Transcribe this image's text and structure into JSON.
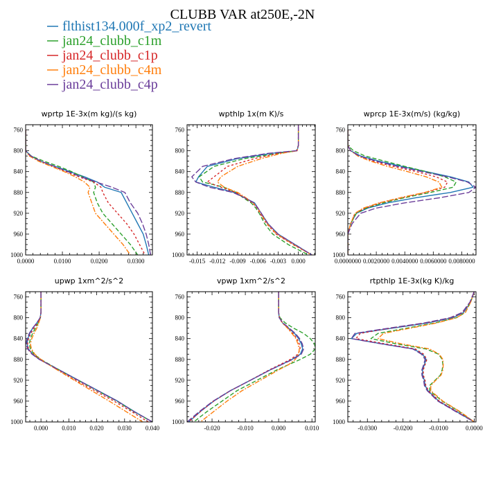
{
  "title": "CLUBB VAR at250E,-2N",
  "legend": [
    {
      "label": "flthist134.000f_xp2_revert",
      "color": "#1f77b4",
      "dash": ""
    },
    {
      "label": "jan24_clubb_c1m",
      "color": "#2ca02c",
      "dash": "6,3"
    },
    {
      "label": "jan24_clubb_c1p",
      "color": "#d62728",
      "dash": "3,3"
    },
    {
      "label": "jan24_clubb_c4m",
      "color": "#ff7f0e",
      "dash": "7,2,2,2"
    },
    {
      "label": "jan24_clubb_c4p",
      "color": "#6a3d9a",
      "dash": "9,3"
    }
  ],
  "chart_data": [
    {
      "type": "line",
      "title": "wprtp  1E-3x(m kg)/(s kg)",
      "xlim": [
        0,
        0.0345
      ],
      "ylim": [
        1000,
        750
      ],
      "xticks": [
        0,
        0.01,
        0.02,
        0.03
      ],
      "xtick_labels": [
        "0.0000",
        "0.0100",
        "0.0200",
        "0.0300"
      ],
      "yticks": [
        760,
        800,
        840,
        880,
        920,
        960,
        1000
      ],
      "y": [
        760,
        780,
        800,
        810,
        820,
        830,
        840,
        850,
        860,
        870,
        880,
        900,
        920,
        940,
        960,
        980,
        1000
      ],
      "series": [
        {
          "name": "flthist134.000f_xp2_revert",
          "values": [
            0,
            0,
            0,
            0.0015,
            0.004,
            0.008,
            0.012,
            0.016,
            0.0195,
            0.0215,
            0.026,
            0.0275,
            0.029,
            0.0305,
            0.032,
            0.0328,
            0.0335
          ]
        },
        {
          "name": "jan24_clubb_c1m",
          "values": [
            0,
            0,
            0,
            0.0015,
            0.005,
            0.009,
            0.0125,
            0.0155,
            0.0185,
            0.019,
            0.0185,
            0.0195,
            0.021,
            0.0235,
            0.026,
            0.0285,
            0.0305
          ]
        },
        {
          "name": "jan24_clubb_c1p",
          "values": [
            0,
            0,
            0,
            0.0012,
            0.004,
            0.0075,
            0.011,
            0.0145,
            0.0185,
            0.0205,
            0.021,
            0.0225,
            0.025,
            0.0275,
            0.0295,
            0.031,
            0.0325
          ]
        },
        {
          "name": "jan24_clubb_c4m",
          "values": [
            0,
            0,
            0,
            0.001,
            0.0035,
            0.007,
            0.0105,
            0.0135,
            0.016,
            0.0175,
            0.017,
            0.018,
            0.019,
            0.0215,
            0.024,
            0.0265,
            0.0285
          ]
        },
        {
          "name": "jan24_clubb_c4p",
          "values": [
            0,
            0,
            0,
            0.0014,
            0.0042,
            0.0078,
            0.0115,
            0.015,
            0.0192,
            0.0235,
            0.027,
            0.0285,
            0.0305,
            0.0318,
            0.0328,
            0.0335,
            0.034
          ]
        }
      ]
    },
    {
      "type": "line",
      "title": "wpthlp  1x(m K)/s",
      "xlim": [
        -0.0165,
        0.0025
      ],
      "ylim": [
        1000,
        750
      ],
      "xticks": [
        -0.015,
        -0.012,
        -0.009,
        -0.006,
        -0.003,
        0
      ],
      "xtick_labels": [
        "-0.015",
        "-0.012",
        "-0.009",
        "-0.006",
        "-0.003",
        "0.000"
      ],
      "yticks": [
        760,
        800,
        840,
        880,
        920,
        960,
        1000
      ],
      "y": [
        750,
        790,
        800,
        805,
        815,
        830,
        850,
        860,
        870,
        880,
        890,
        900,
        910,
        920,
        940,
        960,
        980,
        1000
      ],
      "series": [
        {
          "name": "flthist134.000f_xp2_revert",
          "values": [
            0,
            0,
            -0.0002,
            -0.004,
            -0.009,
            -0.0135,
            -0.0148,
            -0.0152,
            -0.0125,
            -0.0095,
            -0.008,
            -0.0065,
            -0.006,
            -0.0055,
            -0.0045,
            -0.003,
            -0.0005,
            0.002
          ]
        },
        {
          "name": "jan24_clubb_c1m",
          "values": [
            0,
            0,
            -0.0003,
            -0.003,
            -0.008,
            -0.0125,
            -0.0147,
            -0.0142,
            -0.011,
            -0.0092,
            -0.0082,
            -0.007,
            -0.0063,
            -0.0058,
            -0.005,
            -0.0038,
            -0.0015,
            0.0015
          ]
        },
        {
          "name": "jan24_clubb_c1p",
          "values": [
            0,
            0,
            -0.0002,
            -0.003,
            -0.0065,
            -0.0105,
            -0.0125,
            -0.0135,
            -0.0115,
            -0.0093,
            -0.008,
            -0.0068,
            -0.0061,
            -0.0057,
            -0.0047,
            -0.0033,
            -0.0008,
            0.002
          ]
        },
        {
          "name": "jan24_clubb_c4m",
          "values": [
            0,
            0,
            -0.0002,
            -0.0025,
            -0.0055,
            -0.009,
            -0.0115,
            -0.012,
            -0.011,
            -0.009,
            -0.0078,
            -0.0067,
            -0.006,
            -0.0056,
            -0.0046,
            -0.0032,
            -0.0007,
            0.002
          ]
        },
        {
          "name": "jan24_clubb_c4p",
          "values": [
            0,
            0,
            -0.0003,
            -0.0045,
            -0.0095,
            -0.0142,
            -0.0158,
            -0.0152,
            -0.0132,
            -0.0097,
            -0.008,
            -0.0066,
            -0.006,
            -0.0055,
            -0.0045,
            -0.003,
            -0.0005,
            0.002
          ]
        }
      ]
    },
    {
      "type": "line",
      "title": "wprcp  1E-3x(m/s) (kg/kg)",
      "xlim": [
        0,
        0.009
      ],
      "ylim": [
        1000,
        750
      ],
      "xticks": [
        0,
        0.002,
        0.004,
        0.006,
        0.008
      ],
      "xtick_labels": [
        "0.0000000",
        "0.0020000",
        "0.0040000",
        "0.0060000",
        "0.0080000"
      ],
      "yticks": [
        760,
        800,
        840,
        880,
        920,
        960,
        1000
      ],
      "y": [
        760,
        790,
        800,
        810,
        820,
        830,
        840,
        850,
        860,
        870,
        880,
        890,
        900,
        910,
        920,
        940,
        960,
        980,
        1000
      ],
      "series": [
        {
          "name": "flthist134.000f_xp2_revert",
          "values": [
            0,
            0,
            0.0002,
            0.0009,
            0.0022,
            0.0038,
            0.0055,
            0.0072,
            0.0085,
            0.0088,
            0.0072,
            0.0048,
            0.0028,
            0.0014,
            0.0006,
            0.0002,
            0,
            0,
            0
          ]
        },
        {
          "name": "jan24_clubb_c1m",
          "values": [
            0,
            0,
            0.0004,
            0.0012,
            0.0026,
            0.004,
            0.0055,
            0.0068,
            0.0076,
            0.0074,
            0.0058,
            0.004,
            0.0025,
            0.0013,
            0.0006,
            0.0002,
            0,
            0,
            0
          ]
        },
        {
          "name": "jan24_clubb_c1p",
          "values": [
            0,
            0,
            0.0002,
            0.0008,
            0.0018,
            0.0032,
            0.0048,
            0.0062,
            0.007,
            0.0068,
            0.0055,
            0.0038,
            0.0023,
            0.0012,
            0.0005,
            0.0002,
            0,
            0,
            0
          ]
        },
        {
          "name": "jan24_clubb_c4m",
          "values": [
            0,
            0,
            0.0002,
            0.0007,
            0.0016,
            0.0028,
            0.0042,
            0.0055,
            0.0064,
            0.0066,
            0.0054,
            0.0037,
            0.0022,
            0.0011,
            0.0005,
            0.0002,
            0,
            0,
            0
          ]
        },
        {
          "name": "jan24_clubb_c4p",
          "values": [
            0,
            0,
            0.0002,
            0.0008,
            0.002,
            0.0035,
            0.0052,
            0.007,
            0.0084,
            0.009,
            0.0085,
            0.0065,
            0.004,
            0.002,
            0.0009,
            0.0003,
            0,
            0,
            0
          ]
        }
      ]
    },
    {
      "type": "line",
      "title": "upwp  1xm^2/s^2",
      "xlim": [
        -0.0055,
        0.04
      ],
      "ylim": [
        1000,
        750
      ],
      "xticks": [
        0,
        0.01,
        0.02,
        0.03,
        0.04
      ],
      "xtick_labels": [
        "0.000",
        "0.010",
        "0.020",
        "0.030",
        "0.040"
      ],
      "yticks": [
        760,
        800,
        840,
        880,
        920,
        960,
        1000
      ],
      "y": [
        750,
        790,
        800,
        810,
        820,
        830,
        840,
        850,
        860,
        870,
        880,
        890,
        900,
        920,
        940,
        960,
        980,
        1000
      ],
      "series": [
        {
          "name": "flthist134.000f_xp2_revert",
          "values": [
            0,
            0,
            -0.0003,
            -0.0015,
            -0.003,
            -0.004,
            -0.0047,
            -0.005,
            -0.0045,
            -0.003,
            -0.0005,
            0.003,
            0.0065,
            0.0135,
            0.0205,
            0.0275,
            0.0335,
            0.04
          ]
        },
        {
          "name": "jan24_clubb_c1m",
          "values": [
            0,
            0,
            -0.0002,
            -0.001,
            -0.002,
            -0.003,
            -0.0038,
            -0.0042,
            -0.0038,
            -0.0025,
            0,
            0.0032,
            0.0065,
            0.0133,
            0.0202,
            0.0272,
            0.0332,
            0.04
          ]
        },
        {
          "name": "jan24_clubb_c1p",
          "values": [
            0,
            0,
            -0.0003,
            -0.0012,
            -0.0025,
            -0.0036,
            -0.0045,
            -0.0048,
            -0.0045,
            -0.003,
            -0.0005,
            0.0028,
            0.006,
            0.0125,
            0.0193,
            0.0262,
            0.0325,
            0.0385
          ]
        },
        {
          "name": "jan24_clubb_c4m",
          "values": [
            0,
            0,
            -0.0002,
            -0.0008,
            -0.0015,
            -0.0025,
            -0.0033,
            -0.0038,
            -0.0034,
            -0.0022,
            0,
            0.0028,
            0.0058,
            0.012,
            0.0182,
            0.0245,
            0.0305,
            0.0365
          ]
        },
        {
          "name": "jan24_clubb_c4p",
          "values": [
            0,
            0,
            -0.0003,
            -0.0015,
            -0.003,
            -0.0042,
            -0.005,
            -0.0053,
            -0.0048,
            -0.0032,
            -0.0006,
            0.003,
            0.0064,
            0.0134,
            0.0204,
            0.0274,
            0.0334,
            0.04
          ]
        }
      ]
    },
    {
      "type": "line",
      "title": "vpwp  1xm^2/s^2",
      "xlim": [
        -0.0275,
        0.011
      ],
      "ylim": [
        1000,
        750
      ],
      "xticks": [
        -0.02,
        -0.01,
        0,
        0.01
      ],
      "xtick_labels": [
        "-0.020",
        "-0.010",
        "0.000",
        "0.010"
      ],
      "yticks": [
        760,
        800,
        840,
        880,
        920,
        960,
        1000
      ],
      "y": [
        750,
        790,
        800,
        810,
        820,
        830,
        840,
        850,
        860,
        870,
        880,
        890,
        900,
        920,
        940,
        960,
        980,
        1000
      ],
      "series": [
        {
          "name": "flthist134.000f_xp2_revert",
          "values": [
            0,
            0,
            0.0002,
            0.0012,
            0.003,
            0.0048,
            0.006,
            0.0068,
            0.0072,
            0.0065,
            0.004,
            0.0008,
            -0.0025,
            -0.0085,
            -0.0145,
            -0.0195,
            -0.0235,
            -0.027
          ]
        },
        {
          "name": "jan24_clubb_c1m",
          "values": [
            0,
            0,
            0.0004,
            0.002,
            0.0045,
            0.0075,
            0.0095,
            0.0108,
            0.011,
            0.0095,
            0.0065,
            0.003,
            -0.0005,
            -0.0065,
            -0.0125,
            -0.017,
            -0.0215,
            -0.0255
          ]
        },
        {
          "name": "jan24_clubb_c1p",
          "values": [
            0,
            0,
            0.0002,
            0.0011,
            0.0027,
            0.0043,
            0.0055,
            0.0062,
            0.0065,
            0.0058,
            0.0035,
            0.0004,
            -0.0028,
            -0.0085,
            -0.0145,
            -0.0195,
            -0.0235,
            -0.027
          ]
        },
        {
          "name": "jan24_clubb_c4m",
          "values": [
            0,
            0,
            0.0003,
            0.0012,
            0.0027,
            0.004,
            0.0052,
            0.0058,
            0.0062,
            0.006,
            0.005,
            0.003,
            0,
            -0.0055,
            -0.011,
            -0.0155,
            -0.0195,
            -0.0235
          ]
        },
        {
          "name": "jan24_clubb_c4p",
          "values": [
            0,
            0,
            0.0002,
            0.0013,
            0.0032,
            0.005,
            0.0063,
            0.0071,
            0.0075,
            0.0068,
            0.0042,
            0.0009,
            -0.0025,
            -0.0085,
            -0.0145,
            -0.0197,
            -0.0238,
            -0.0275
          ]
        }
      ]
    },
    {
      "type": "line",
      "title": "rtpthlp  1E-3x(kg K)/kg",
      "xlim": [
        -0.0355,
        0.0005
      ],
      "ylim": [
        1000,
        750
      ],
      "xticks": [
        -0.03,
        -0.02,
        -0.01,
        0
      ],
      "xtick_labels": [
        "-0.0300",
        "-0.0200",
        "-0.0100",
        "0.0000"
      ],
      "yticks": [
        760,
        800,
        840,
        880,
        920,
        960,
        1000
      ],
      "y": [
        750,
        770,
        790,
        800,
        810,
        820,
        830,
        840,
        850,
        860,
        870,
        880,
        890,
        900,
        910,
        920,
        930,
        940,
        960,
        980,
        1000
      ],
      "series": [
        {
          "name": "flthist134.000f_xp2_revert",
          "values": [
            0,
            -0.001,
            -0.003,
            -0.006,
            -0.013,
            -0.023,
            -0.033,
            -0.0345,
            -0.026,
            -0.017,
            -0.0145,
            -0.0135,
            -0.014,
            -0.0145,
            -0.0145,
            -0.014,
            -0.0138,
            -0.013,
            -0.01,
            -0.005,
            0
          ]
        },
        {
          "name": "jan24_clubb_c1m",
          "values": [
            0,
            -0.001,
            -0.0025,
            -0.005,
            -0.011,
            -0.019,
            -0.027,
            -0.029,
            -0.022,
            -0.0135,
            -0.01,
            -0.009,
            -0.0088,
            -0.009,
            -0.0095,
            -0.011,
            -0.0125,
            -0.0125,
            -0.009,
            -0.0042,
            0
          ]
        },
        {
          "name": "jan24_clubb_c1p",
          "values": [
            0,
            -0.0012,
            -0.0032,
            -0.0065,
            -0.0135,
            -0.0235,
            -0.032,
            -0.0332,
            -0.025,
            -0.0165,
            -0.0142,
            -0.0133,
            -0.0138,
            -0.0143,
            -0.0143,
            -0.0138,
            -0.0136,
            -0.0128,
            -0.0098,
            -0.0048,
            0
          ]
        },
        {
          "name": "jan24_clubb_c4m",
          "values": [
            0,
            -0.001,
            -0.0025,
            -0.005,
            -0.0105,
            -0.018,
            -0.0255,
            -0.027,
            -0.0205,
            -0.0125,
            -0.0098,
            -0.0088,
            -0.0087,
            -0.0088,
            -0.0093,
            -0.0108,
            -0.0122,
            -0.0122,
            -0.0088,
            -0.004,
            0
          ]
        },
        {
          "name": "jan24_clubb_c4p",
          "values": [
            0,
            -0.0012,
            -0.0034,
            -0.0068,
            -0.014,
            -0.024,
            -0.0335,
            -0.0345,
            -0.0262,
            -0.0172,
            -0.0148,
            -0.0138,
            -0.0142,
            -0.0147,
            -0.0147,
            -0.0142,
            -0.014,
            -0.0132,
            -0.0102,
            -0.0052,
            0
          ]
        }
      ]
    }
  ]
}
